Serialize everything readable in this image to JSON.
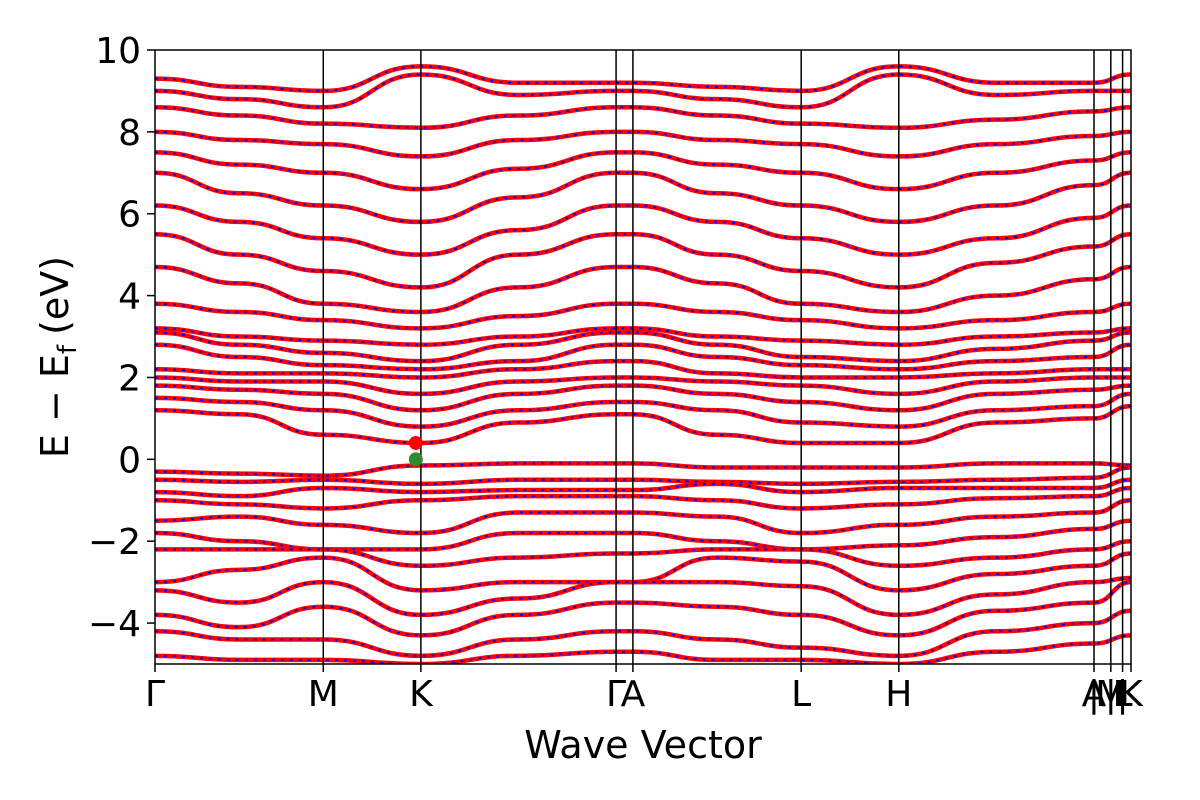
{
  "chart_data": {
    "type": "line",
    "title": "",
    "xlabel": "Wave Vector",
    "ylabel": "E − E",
    "ylabel_subscript": "f",
    "ylabel_unit": "(eV)",
    "ylim": [
      -5,
      10
    ],
    "yticks": [
      {
        "value": -4,
        "label": "−4"
      },
      {
        "value": -2,
        "label": "−2"
      },
      {
        "value": 0,
        "label": "0"
      },
      {
        "value": 2,
        "label": "2"
      },
      {
        "value": 4,
        "label": "4"
      },
      {
        "value": 6,
        "label": "6"
      },
      {
        "value": 8,
        "label": "8"
      },
      {
        "value": 10,
        "label": "10"
      }
    ],
    "xlim": [
      0,
      5.8
    ],
    "kpoints": [
      {
        "label": "Γ",
        "x": 0.0
      },
      {
        "label": "M",
        "x": 1.0
      },
      {
        "label": "K",
        "x": 1.58
      },
      {
        "label": "Γ",
        "x": 2.74
      },
      {
        "label": "A",
        "x": 2.84
      },
      {
        "label": "L",
        "x": 3.84
      },
      {
        "label": "H",
        "x": 4.42
      },
      {
        "label": "A",
        "x": 5.58
      },
      {
        "label": "|",
        "x": 5.58
      },
      {
        "label": "M",
        "x": 5.68
      },
      {
        "label": "|",
        "x": 5.68
      },
      {
        "label": "L",
        "x": 5.75
      },
      {
        "label": "|",
        "x": 5.75
      },
      {
        "label": "K",
        "x": 5.8
      }
    ],
    "kpoint_lines": [
      1.0,
      1.58,
      2.74,
      2.84,
      3.84,
      4.42,
      5.58,
      5.68,
      5.75
    ],
    "band_styles": {
      "primary_color": "#ff0000",
      "overlay_color": "#0000ff",
      "overlay_dashed": true
    },
    "markers": [
      {
        "name": "CBM",
        "x": 1.55,
        "y": 0.4,
        "color": "#ff0000"
      },
      {
        "name": "VBM",
        "x": 1.55,
        "y": 0.0,
        "color": "#2e8b2e"
      }
    ],
    "bands_valence": [
      [
        -0.3,
        -0.35,
        -0.4,
        -0.15,
        -0.1,
        -0.1,
        -0.1,
        -0.2,
        -0.2,
        -0.2,
        -0.1,
        -0.1,
        -0.15
      ],
      [
        -0.5,
        -0.55,
        -0.5,
        -0.6,
        -0.5,
        -0.5,
        -0.5,
        -0.55,
        -0.6,
        -0.55,
        -0.5,
        -0.45,
        -0.2
      ],
      [
        -0.8,
        -0.9,
        -0.7,
        -0.8,
        -0.75,
        -0.75,
        -0.75,
        -0.6,
        -0.8,
        -0.7,
        -0.7,
        -0.7,
        -0.5
      ],
      [
        -1.0,
        -1.1,
        -1.2,
        -1.0,
        -0.9,
        -0.9,
        -0.9,
        -1.0,
        -1.2,
        -1.1,
        -0.95,
        -0.9,
        -0.7
      ],
      [
        -1.5,
        -1.4,
        -1.6,
        -1.8,
        -1.3,
        -1.3,
        -1.3,
        -1.4,
        -1.8,
        -1.6,
        -1.4,
        -1.3,
        -1.0
      ],
      [
        -1.8,
        -2.0,
        -2.2,
        -2.2,
        -1.8,
        -1.8,
        -1.8,
        -2.0,
        -2.2,
        -2.1,
        -1.9,
        -1.7,
        -1.5
      ],
      [
        -2.2,
        -2.2,
        -2.2,
        -2.6,
        -2.4,
        -2.3,
        -2.3,
        -2.2,
        -2.2,
        -2.6,
        -2.4,
        -2.2,
        -2.0
      ],
      [
        -3.0,
        -2.7,
        -2.4,
        -3.2,
        -3.0,
        -3.0,
        -3.0,
        -2.4,
        -2.5,
        -3.2,
        -2.8,
        -2.6,
        -2.3
      ],
      [
        -3.2,
        -3.5,
        -3.0,
        -3.8,
        -3.4,
        -3.0,
        -3.0,
        -3.0,
        -3.1,
        -3.8,
        -3.3,
        -3.0,
        -2.9
      ],
      [
        -3.8,
        -4.1,
        -3.6,
        -4.3,
        -3.8,
        -3.5,
        -3.5,
        -3.6,
        -3.8,
        -4.3,
        -3.7,
        -3.5,
        -3.0
      ],
      [
        -4.2,
        -4.4,
        -4.4,
        -4.8,
        -4.4,
        -4.2,
        -4.2,
        -4.4,
        -4.6,
        -4.8,
        -4.2,
        -4.0,
        -3.7
      ],
      [
        -4.8,
        -4.9,
        -4.9,
        -5.0,
        -4.8,
        -4.7,
        -4.7,
        -4.9,
        -4.9,
        -5.0,
        -4.7,
        -4.5,
        -4.3
      ]
    ],
    "bands_conduction": [
      [
        1.2,
        1.1,
        0.6,
        0.4,
        0.9,
        1.1,
        1.1,
        0.6,
        0.4,
        0.4,
        0.9,
        1.0,
        1.3
      ],
      [
        1.5,
        1.4,
        1.2,
        0.8,
        1.2,
        1.4,
        1.4,
        1.2,
        0.9,
        0.8,
        1.2,
        1.3,
        1.6
      ],
      [
        1.8,
        1.7,
        1.6,
        1.2,
        1.6,
        1.8,
        1.8,
        1.6,
        1.4,
        1.2,
        1.6,
        1.7,
        1.8
      ],
      [
        2.0,
        1.9,
        1.9,
        1.6,
        1.9,
        2.0,
        2.0,
        1.9,
        1.8,
        1.6,
        1.9,
        2.0,
        2.0
      ],
      [
        2.2,
        2.1,
        2.1,
        2.0,
        2.2,
        2.4,
        2.4,
        2.1,
        2.0,
        2.0,
        2.1,
        2.2,
        2.2
      ],
      [
        2.8,
        2.5,
        2.3,
        2.2,
        2.4,
        2.8,
        2.8,
        2.5,
        2.3,
        2.2,
        2.4,
        2.5,
        2.8
      ],
      [
        3.1,
        2.8,
        2.6,
        2.4,
        2.8,
        3.1,
        3.1,
        2.8,
        2.5,
        2.4,
        2.7,
        2.9,
        3.1
      ],
      [
        3.2,
        3.0,
        2.9,
        2.8,
        3.0,
        3.2,
        3.2,
        3.0,
        2.9,
        2.8,
        3.0,
        3.1,
        3.2
      ],
      [
        3.8,
        3.6,
        3.4,
        3.2,
        3.5,
        3.8,
        3.8,
        3.6,
        3.4,
        3.2,
        3.4,
        3.6,
        3.8
      ],
      [
        4.7,
        4.3,
        3.8,
        3.6,
        4.2,
        4.7,
        4.7,
        4.3,
        3.8,
        3.6,
        4.0,
        4.4,
        4.7
      ],
      [
        5.5,
        5.0,
        4.6,
        4.2,
        5.0,
        5.5,
        5.5,
        5.0,
        4.6,
        4.2,
        4.8,
        5.2,
        5.5
      ],
      [
        6.2,
        5.8,
        5.4,
        5.0,
        5.6,
        6.2,
        6.2,
        5.8,
        5.4,
        5.0,
        5.4,
        5.9,
        6.2
      ],
      [
        7.0,
        6.5,
        6.2,
        5.8,
        6.4,
        7.0,
        7.0,
        6.5,
        6.2,
        5.8,
        6.2,
        6.7,
        7.0
      ],
      [
        7.5,
        7.2,
        7.0,
        6.6,
        7.1,
        7.5,
        7.5,
        7.2,
        7.0,
        6.6,
        7.0,
        7.3,
        7.5
      ],
      [
        8.0,
        7.8,
        7.7,
        7.4,
        7.8,
        8.0,
        8.0,
        7.8,
        7.7,
        7.4,
        7.7,
        7.9,
        8.0
      ],
      [
        8.6,
        8.4,
        8.2,
        8.1,
        8.4,
        8.6,
        8.6,
        8.4,
        8.2,
        8.1,
        8.3,
        8.5,
        8.6
      ],
      [
        9.0,
        8.8,
        8.6,
        9.4,
        8.9,
        9.0,
        9.0,
        8.8,
        8.6,
        9.4,
        8.9,
        9.0,
        9.0
      ],
      [
        9.3,
        9.1,
        9.0,
        9.6,
        9.2,
        9.2,
        9.2,
        9.1,
        9.0,
        9.6,
        9.2,
        9.2,
        9.4
      ]
    ],
    "band_x": [
      0.0,
      0.5,
      1.0,
      1.58,
      2.16,
      2.74,
      2.84,
      3.34,
      3.84,
      4.42,
      5.0,
      5.58,
      5.8
    ]
  }
}
